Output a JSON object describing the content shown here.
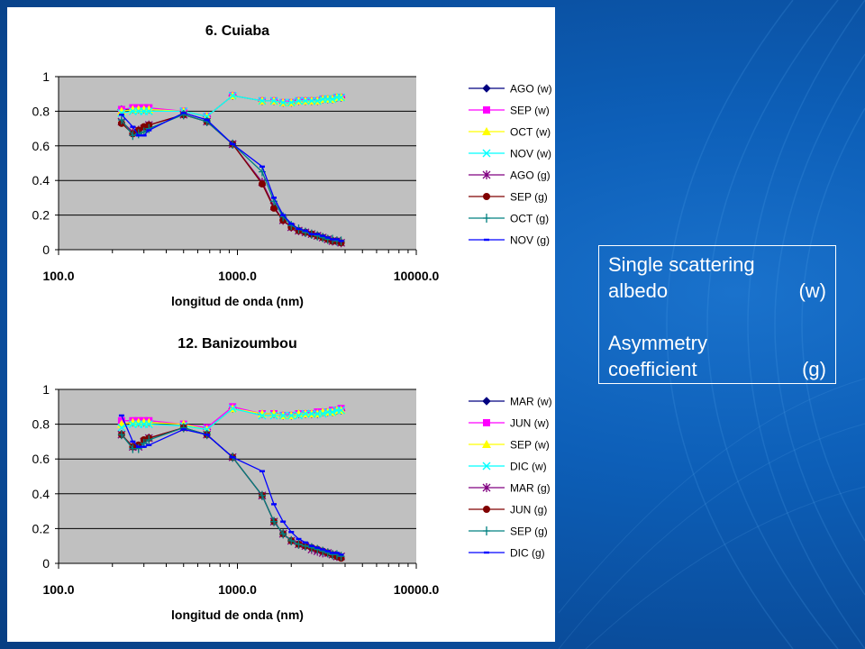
{
  "legend_box": {
    "line1": "Single scattering",
    "line2_label": "albedo",
    "line2_symbol": "(w)",
    "line3": "Asymmetry",
    "line4_label": "coefficient",
    "line4_symbol": "(g)"
  },
  "chart_data": [
    {
      "type": "line",
      "title": "6. Cuiaba",
      "xlabel": "longitud de onda (nm)",
      "ylabel": "",
      "xscale": "log",
      "xlim": [
        100,
        10000
      ],
      "ylim": [
        0,
        1
      ],
      "xticks": [
        "100.0",
        "1000.0",
        "10000.0"
      ],
      "yticks": [
        "0",
        "0.2",
        "0.4",
        "0.6",
        "0.8",
        "1"
      ],
      "legend_position": "right",
      "series": [
        {
          "name": "AGO (w)",
          "color": "#000080",
          "marker": "diamond",
          "x": [
            225,
            260,
            280,
            300,
            320,
            500,
            675,
            940,
            1375,
            1600,
            1800,
            2000,
            2200,
            2400,
            2600,
            2800,
            3000,
            3200,
            3400,
            3600,
            3800
          ],
          "y": [
            0.81,
            0.81,
            0.81,
            0.81,
            0.81,
            0.8,
            0.77,
            0.89,
            0.86,
            0.86,
            0.85,
            0.85,
            0.86,
            0.86,
            0.86,
            0.86,
            0.87,
            0.87,
            0.87,
            0.88,
            0.88
          ]
        },
        {
          "name": "SEP (w)",
          "color": "#ff00ff",
          "marker": "square",
          "x": [
            225,
            260,
            280,
            300,
            320,
            500,
            675,
            940,
            1375,
            1600,
            1800,
            2000,
            2200,
            2400,
            2600,
            2800,
            3000,
            3200,
            3400,
            3600,
            3800
          ],
          "y": [
            0.81,
            0.82,
            0.82,
            0.82,
            0.82,
            0.8,
            0.77,
            0.89,
            0.86,
            0.86,
            0.85,
            0.85,
            0.86,
            0.86,
            0.86,
            0.86,
            0.87,
            0.87,
            0.87,
            0.88,
            0.88
          ]
        },
        {
          "name": "OCT (w)",
          "color": "#ffff00",
          "marker": "triangle",
          "x": [
            225,
            260,
            280,
            300,
            320,
            500,
            675,
            940,
            1375,
            1600,
            1800,
            2000,
            2200,
            2400,
            2600,
            2800,
            3000,
            3200,
            3400,
            3600,
            3800
          ],
          "y": [
            0.8,
            0.81,
            0.81,
            0.81,
            0.81,
            0.8,
            0.77,
            0.89,
            0.86,
            0.86,
            0.85,
            0.85,
            0.86,
            0.86,
            0.86,
            0.86,
            0.87,
            0.87,
            0.87,
            0.88,
            0.88
          ]
        },
        {
          "name": "NOV (w)",
          "color": "#00ffff",
          "marker": "x",
          "x": [
            225,
            260,
            280,
            300,
            320,
            500,
            675,
            940,
            1375,
            1600,
            1800,
            2000,
            2200,
            2400,
            2600,
            2800,
            3000,
            3200,
            3400,
            3600,
            3800
          ],
          "y": [
            0.79,
            0.8,
            0.8,
            0.8,
            0.8,
            0.8,
            0.77,
            0.89,
            0.86,
            0.86,
            0.85,
            0.85,
            0.86,
            0.86,
            0.86,
            0.86,
            0.87,
            0.87,
            0.87,
            0.88,
            0.88
          ]
        },
        {
          "name": "AGO (g)",
          "color": "#800080",
          "marker": "star",
          "x": [
            225,
            260,
            280,
            300,
            320,
            500,
            675,
            940,
            1375,
            1600,
            1800,
            2000,
            2200,
            2400,
            2600,
            2800,
            3000,
            3200,
            3400,
            3600,
            3800
          ],
          "y": [
            0.74,
            0.68,
            0.69,
            0.7,
            0.72,
            0.78,
            0.74,
            0.61,
            0.39,
            0.25,
            0.17,
            0.13,
            0.11,
            0.1,
            0.09,
            0.08,
            0.07,
            0.06,
            0.05,
            0.05,
            0.04
          ]
        },
        {
          "name": "SEP (g)",
          "color": "#800000",
          "marker": "circle",
          "x": [
            225,
            260,
            280,
            300,
            320,
            500,
            675,
            940,
            1375,
            1600,
            1800,
            2000,
            2200,
            2400,
            2600,
            2800,
            3000,
            3200,
            3400,
            3600,
            3800
          ],
          "y": [
            0.73,
            0.67,
            0.69,
            0.71,
            0.72,
            0.78,
            0.74,
            0.61,
            0.38,
            0.24,
            0.17,
            0.13,
            0.11,
            0.1,
            0.09,
            0.08,
            0.07,
            0.06,
            0.05,
            0.05,
            0.04
          ]
        },
        {
          "name": "OCT (g)",
          "color": "#008080",
          "marker": "plus",
          "x": [
            225,
            260,
            280,
            300,
            320,
            500,
            675,
            940,
            1375,
            1600,
            1800,
            2000,
            2200,
            2400,
            2600,
            2800,
            3000,
            3200,
            3400,
            3600,
            3800
          ],
          "y": [
            0.75,
            0.66,
            0.67,
            0.68,
            0.7,
            0.78,
            0.74,
            0.61,
            0.45,
            0.28,
            0.19,
            0.14,
            0.12,
            0.1,
            0.09,
            0.08,
            0.07,
            0.06,
            0.06,
            0.05,
            0.05
          ]
        },
        {
          "name": "NOV (g)",
          "color": "#0000ff",
          "marker": "dash",
          "x": [
            225,
            260,
            280,
            300,
            320,
            500,
            675,
            940,
            1375,
            1600,
            1800,
            2000,
            2200,
            2400,
            2600,
            2800,
            3000,
            3200,
            3400,
            3600,
            3800
          ],
          "y": [
            0.78,
            0.71,
            0.66,
            0.66,
            0.69,
            0.79,
            0.75,
            0.61,
            0.48,
            0.3,
            0.2,
            0.15,
            0.12,
            0.11,
            0.09,
            0.09,
            0.08,
            0.07,
            0.06,
            0.06,
            0.05
          ]
        }
      ]
    },
    {
      "type": "line",
      "title": "12. Banizoumbou",
      "xlabel": "longitud de onda (nm)",
      "ylabel": "",
      "xscale": "log",
      "xlim": [
        100,
        10000
      ],
      "ylim": [
        0,
        1
      ],
      "xticks": [
        "100.0",
        "1000.0",
        "10000.0"
      ],
      "yticks": [
        "0",
        "0.2",
        "0.4",
        "0.6",
        "0.8",
        "1"
      ],
      "legend_position": "right",
      "series": [
        {
          "name": "MAR (w)",
          "color": "#000080",
          "marker": "diamond",
          "x": [
            225,
            260,
            280,
            300,
            320,
            500,
            675,
            940,
            1375,
            1600,
            1800,
            2000,
            2200,
            2400,
            2600,
            2800,
            3000,
            3200,
            3400,
            3600,
            3800
          ],
          "y": [
            0.8,
            0.81,
            0.81,
            0.81,
            0.81,
            0.8,
            0.77,
            0.89,
            0.86,
            0.86,
            0.85,
            0.85,
            0.86,
            0.86,
            0.86,
            0.86,
            0.87,
            0.87,
            0.87,
            0.88,
            0.88
          ]
        },
        {
          "name": "JUN (w)",
          "color": "#ff00ff",
          "marker": "square",
          "x": [
            225,
            260,
            280,
            300,
            320,
            500,
            675,
            940,
            1375,
            1600,
            1800,
            2000,
            2200,
            2400,
            2600,
            2800,
            3000,
            3200,
            3400,
            3600,
            3800
          ],
          "y": [
            0.82,
            0.82,
            0.82,
            0.82,
            0.82,
            0.8,
            0.78,
            0.9,
            0.86,
            0.86,
            0.85,
            0.85,
            0.86,
            0.86,
            0.86,
            0.87,
            0.87,
            0.87,
            0.88,
            0.88,
            0.89
          ]
        },
        {
          "name": "SEP (w)",
          "color": "#ffff00",
          "marker": "triangle",
          "x": [
            225,
            260,
            280,
            300,
            320,
            500,
            675,
            940,
            1375,
            1600,
            1800,
            2000,
            2200,
            2400,
            2600,
            2800,
            3000,
            3200,
            3400,
            3600,
            3800
          ],
          "y": [
            0.8,
            0.81,
            0.81,
            0.81,
            0.81,
            0.8,
            0.77,
            0.89,
            0.86,
            0.86,
            0.85,
            0.85,
            0.86,
            0.86,
            0.86,
            0.86,
            0.87,
            0.87,
            0.87,
            0.88,
            0.88
          ]
        },
        {
          "name": "DIC (w)",
          "color": "#00ffff",
          "marker": "x",
          "x": [
            225,
            260,
            280,
            300,
            320,
            500,
            675,
            940,
            1375,
            1600,
            1800,
            2000,
            2200,
            2400,
            2600,
            2800,
            3000,
            3200,
            3400,
            3600,
            3800
          ],
          "y": [
            0.78,
            0.8,
            0.8,
            0.8,
            0.8,
            0.79,
            0.77,
            0.89,
            0.85,
            0.85,
            0.85,
            0.85,
            0.85,
            0.86,
            0.86,
            0.86,
            0.86,
            0.87,
            0.87,
            0.88,
            0.88
          ]
        },
        {
          "name": "MAR (g)",
          "color": "#800080",
          "marker": "star",
          "x": [
            225,
            260,
            280,
            300,
            320,
            500,
            675,
            940,
            1375,
            1600,
            1800,
            2000,
            2200,
            2400,
            2600,
            2800,
            3000,
            3200,
            3400,
            3600,
            3800
          ],
          "y": [
            0.74,
            0.67,
            0.67,
            0.7,
            0.72,
            0.78,
            0.74,
            0.61,
            0.39,
            0.24,
            0.17,
            0.13,
            0.11,
            0.1,
            0.08,
            0.07,
            0.06,
            0.06,
            0.05,
            0.04,
            0.04
          ]
        },
        {
          "name": "JUN (g)",
          "color": "#800000",
          "marker": "circle",
          "x": [
            225,
            260,
            280,
            300,
            320,
            500,
            675,
            940,
            1375,
            1600,
            1800,
            2000,
            2200,
            2400,
            2600,
            2800,
            3000,
            3200,
            3400,
            3600,
            3800
          ],
          "y": [
            0.74,
            0.67,
            0.68,
            0.71,
            0.72,
            0.78,
            0.74,
            0.61,
            0.39,
            0.24,
            0.17,
            0.13,
            0.11,
            0.1,
            0.09,
            0.08,
            0.07,
            0.06,
            0.05,
            0.04,
            0.03
          ]
        },
        {
          "name": "SEP (g)",
          "color": "#008080",
          "marker": "plus",
          "x": [
            225,
            260,
            280,
            300,
            320,
            500,
            675,
            940,
            1375,
            1600,
            1800,
            2000,
            2200,
            2400,
            2600,
            2800,
            3000,
            3200,
            3400,
            3600,
            3800
          ],
          "y": [
            0.74,
            0.66,
            0.66,
            0.69,
            0.71,
            0.78,
            0.74,
            0.61,
            0.39,
            0.24,
            0.17,
            0.13,
            0.11,
            0.1,
            0.09,
            0.08,
            0.07,
            0.06,
            0.05,
            0.05,
            0.04
          ]
        },
        {
          "name": "DIC (g)",
          "color": "#0000ff",
          "marker": "dash",
          "x": [
            225,
            260,
            280,
            300,
            320,
            500,
            675,
            940,
            1375,
            1600,
            1800,
            2000,
            2200,
            2400,
            2600,
            2800,
            3000,
            3200,
            3400,
            3600,
            3800
          ],
          "y": [
            0.85,
            0.7,
            0.67,
            0.67,
            0.68,
            0.77,
            0.74,
            0.61,
            0.53,
            0.34,
            0.24,
            0.18,
            0.14,
            0.12,
            0.1,
            0.09,
            0.08,
            0.07,
            0.06,
            0.06,
            0.05
          ]
        }
      ]
    }
  ]
}
